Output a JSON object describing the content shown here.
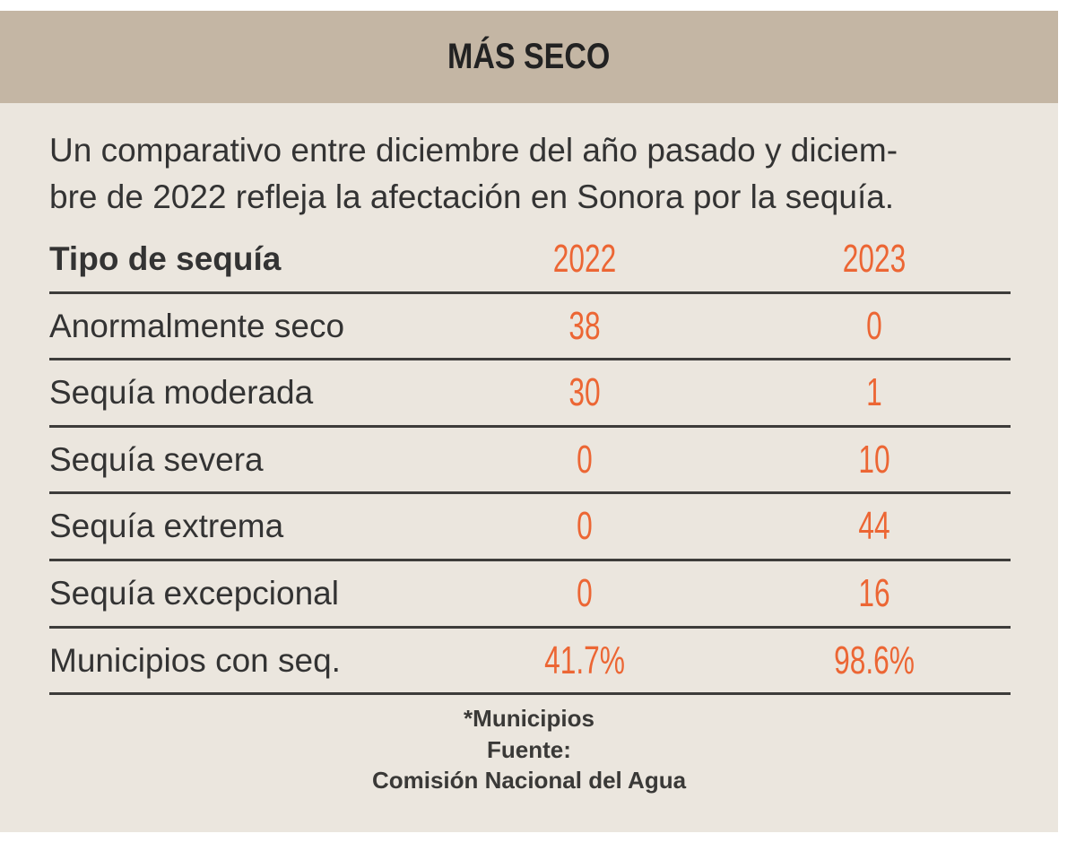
{
  "title": "MÁS SECO",
  "intro": [
    "Un comparativo entre diciembre del año pasado y diciem-",
    "bre de 2022 refleja la afectación en Sonora por la sequía."
  ],
  "colors": {
    "header": "#c4b6a4",
    "background": "#ebe6de",
    "accent": "#ec6634"
  },
  "chart_data": {
    "type": "table",
    "columns": [
      "Tipo de sequía",
      "2022",
      "2023"
    ],
    "rows": [
      [
        "Anormalmente seco",
        "38",
        "0"
      ],
      [
        "Sequía moderada",
        "30",
        "1"
      ],
      [
        "Sequía severa",
        "0",
        "10"
      ],
      [
        "Sequía extrema",
        "0",
        "44"
      ],
      [
        "Sequía excepcional",
        "0",
        "16"
      ],
      [
        "Municipios con seq.",
        "41.7%",
        "98.6%"
      ]
    ]
  },
  "footer": {
    "note": "*Municipios",
    "source_label": "Fuente:",
    "source": "Comisión Nacional del Agua"
  }
}
